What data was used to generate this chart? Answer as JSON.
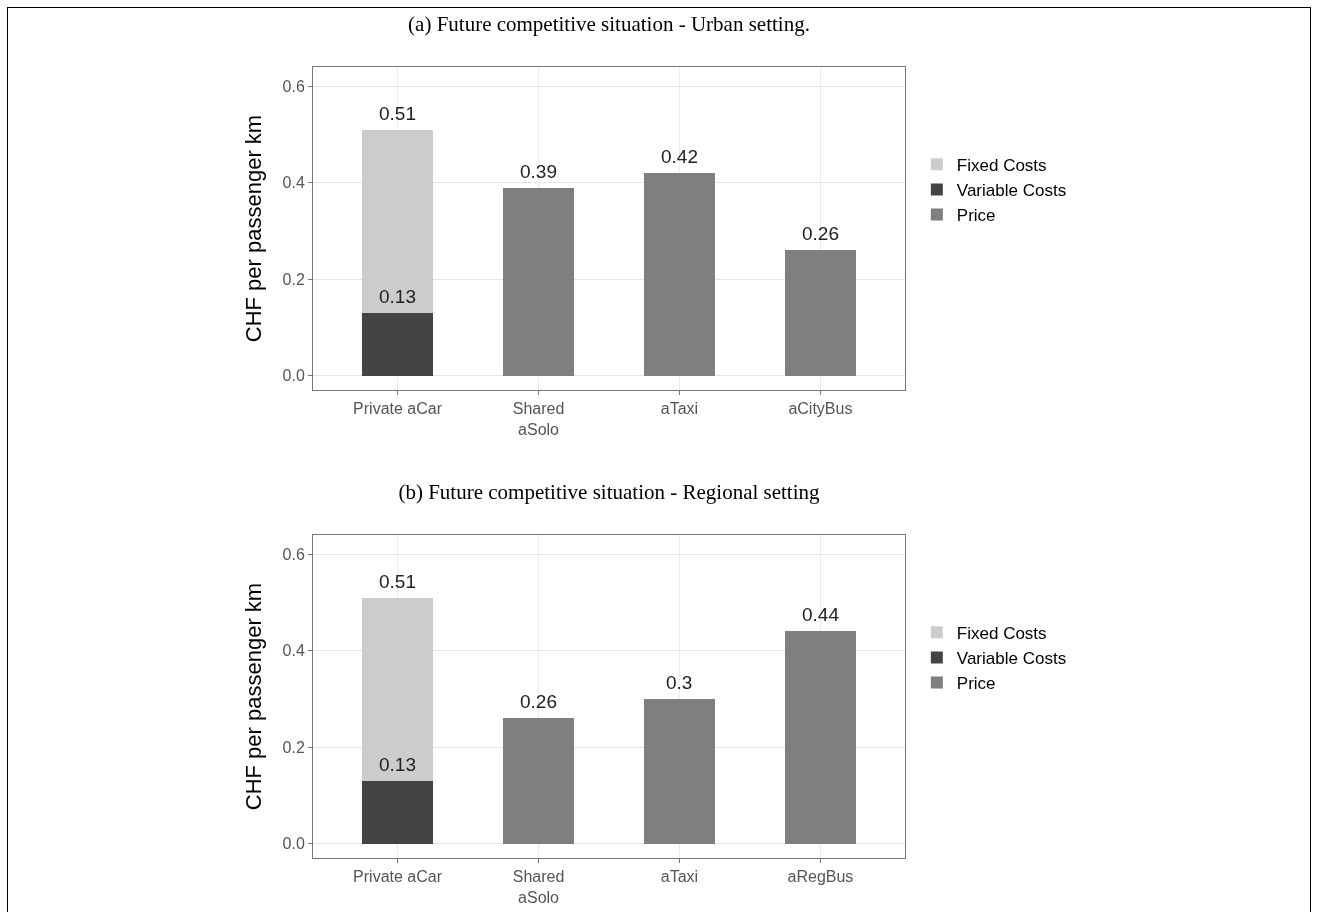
{
  "chart_data": [
    {
      "type": "bar",
      "title": "(a) Future competitive situation - Urban setting.",
      "ylabel": "CHF per passenger km",
      "categories": [
        "Private aCar",
        "Shared\naSolo",
        "aTaxi",
        "aCityBus"
      ],
      "stacked": true,
      "series": [
        {
          "name": "Variable Costs",
          "color": "#444444",
          "values": [
            0.13,
            null,
            null,
            null
          ],
          "value_labels": [
            "0.13",
            null,
            null,
            null
          ]
        },
        {
          "name": "Fixed Costs",
          "color": "#cccccc",
          "values": [
            0.38,
            null,
            null,
            null
          ],
          "value_labels": [
            null,
            null,
            null,
            null
          ]
        },
        {
          "name": "Price",
          "color": "#7f7f7f",
          "values": [
            null,
            0.39,
            0.42,
            0.26
          ],
          "value_labels": [
            null,
            "0.39",
            "0.42",
            "0.26"
          ]
        }
      ],
      "totals": [
        "0.51",
        null,
        null,
        null
      ],
      "ylim": [
        -0.03,
        0.64
      ],
      "yticks": [
        {
          "value": 0,
          "label": "0.0"
        },
        0.2,
        0.4,
        0.6
      ],
      "grid": true,
      "legend": "right"
    },
    {
      "type": "bar",
      "title": "(b) Future competitive situation - Regional setting",
      "ylabel": "CHF per passenger km",
      "categories": [
        "Private aCar",
        "Shared\naSolo",
        "aTaxi",
        "aRegBus"
      ],
      "stacked": true,
      "series": [
        {
          "name": "Variable Costs",
          "color": "#444444",
          "values": [
            0.13,
            null,
            null,
            null
          ],
          "value_labels": [
            "0.13",
            null,
            null,
            null
          ]
        },
        {
          "name": "Fixed Costs",
          "color": "#cccccc",
          "values": [
            0.38,
            null,
            null,
            null
          ],
          "value_labels": [
            null,
            null,
            null,
            null
          ]
        },
        {
          "name": "Price",
          "color": "#7f7f7f",
          "values": [
            null,
            0.26,
            0.3,
            0.44
          ],
          "value_labels": [
            null,
            "0.26",
            "0.3",
            "0.44"
          ]
        }
      ],
      "totals": [
        "0.51",
        null,
        null,
        null
      ],
      "ylim": [
        -0.03,
        0.64
      ],
      "yticks": [
        {
          "value": 0,
          "label": "0.0"
        },
        0.2,
        0.4,
        0.6
      ],
      "grid": true,
      "legend": "right"
    }
  ]
}
